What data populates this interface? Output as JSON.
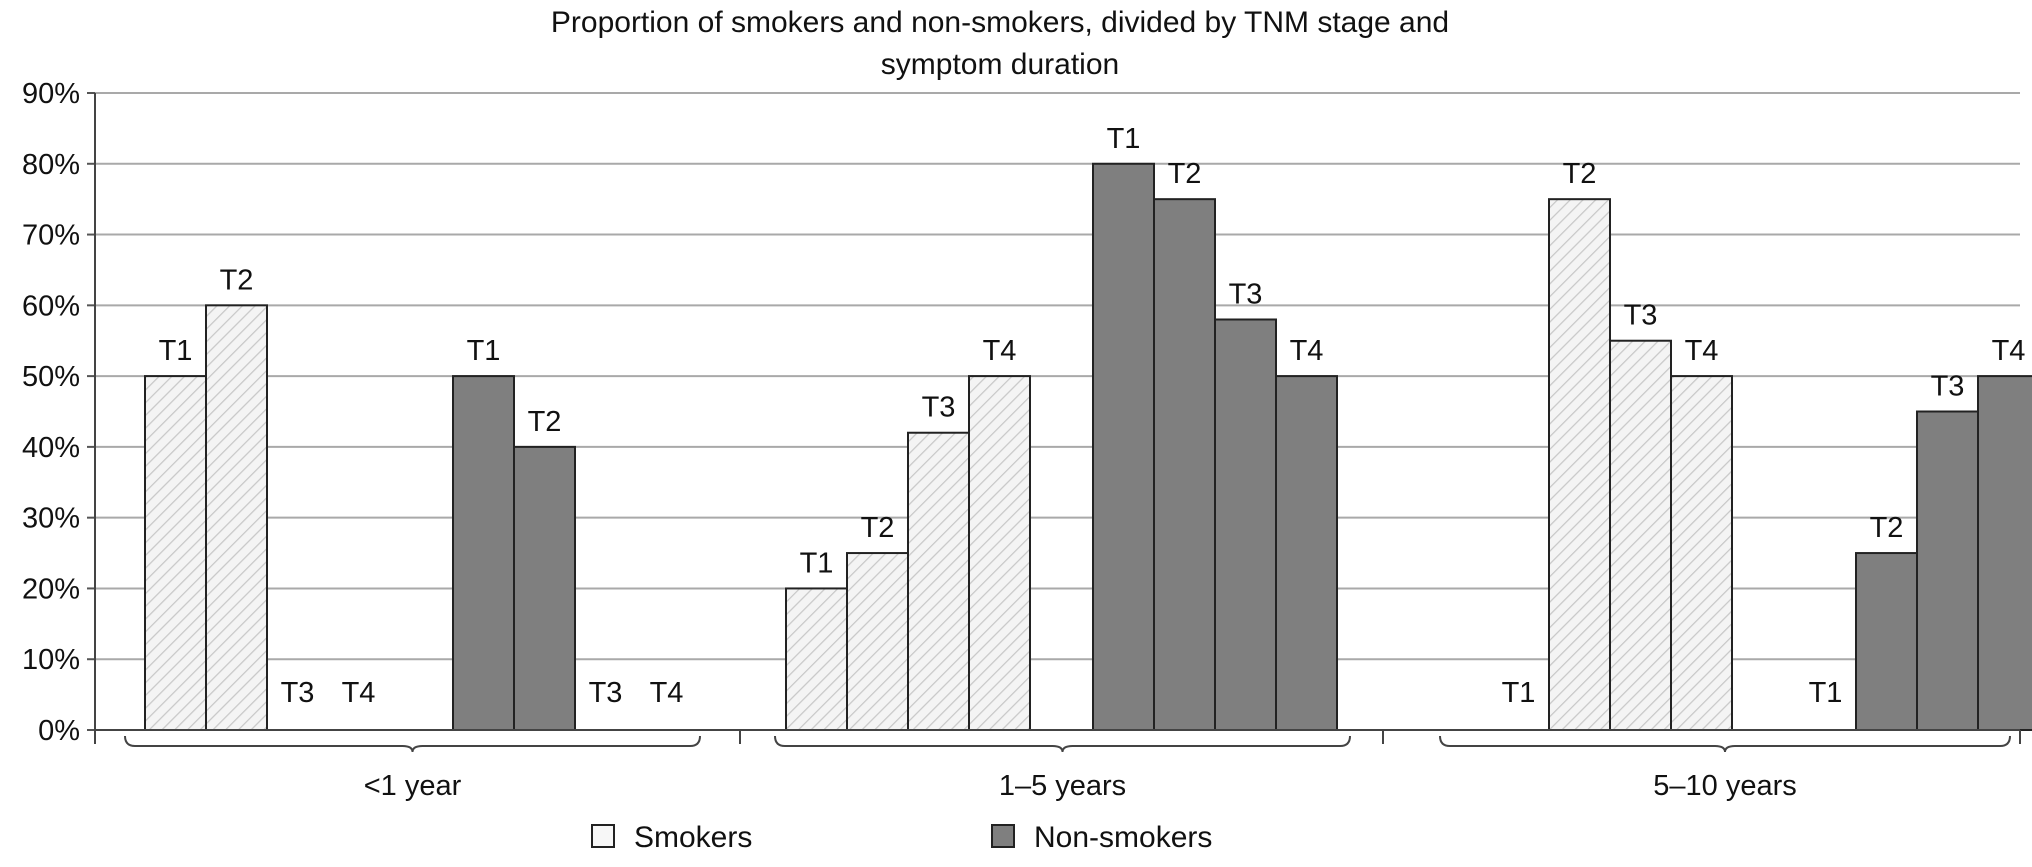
{
  "chart_data": {
    "type": "bar",
    "title_lines": [
      "Proportion of smokers and non-smokers, divided by TNM stage and",
      "symptom duration"
    ],
    "xlabel": "",
    "ylabel": "",
    "ylim": [
      0,
      90
    ],
    "yticks": [
      "0%",
      "10%",
      "20%",
      "30%",
      "40%",
      "50%",
      "60%",
      "70%",
      "80%",
      "90%"
    ],
    "grid": true,
    "legend_position": "bottom",
    "groups": [
      "<1 year",
      "1–5 years",
      "5–10 years"
    ],
    "stages": [
      "T1",
      "T2",
      "T3",
      "T4"
    ],
    "series": [
      {
        "name": "Smokers",
        "color": "#f2f2f2",
        "pattern": "hatched",
        "values_by_group": [
          [
            50,
            60,
            0,
            0
          ],
          [
            20,
            25,
            42,
            50
          ],
          [
            0,
            75,
            55,
            50
          ]
        ]
      },
      {
        "name": "Non-smokers",
        "color": "#7f7f7f",
        "pattern": "solid",
        "values_by_group": [
          [
            50,
            40,
            0,
            0
          ],
          [
            80,
            75,
            58,
            50
          ],
          [
            0,
            25,
            45,
            50
          ]
        ]
      }
    ]
  }
}
